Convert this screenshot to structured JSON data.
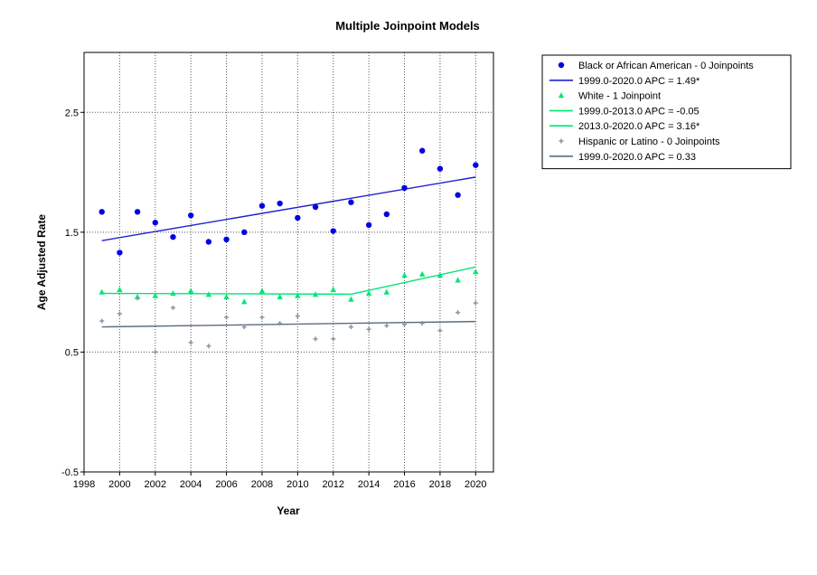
{
  "chart_data": {
    "type": "scatter",
    "title": "Multiple Joinpoint Models",
    "xlabel": "Year",
    "ylabel": "Age Adjusted Rate",
    "xlim": [
      1998,
      2021
    ],
    "ylim": [
      -0.5,
      3.0
    ],
    "x_ticks": [
      1998,
      2000,
      2002,
      2004,
      2006,
      2008,
      2010,
      2012,
      2014,
      2016,
      2018,
      2020
    ],
    "y_ticks": [
      -0.5,
      0.5,
      1.5,
      2.5
    ],
    "y_tick_labels": [
      "-0.5",
      "0.5",
      "1.5",
      "2.5"
    ],
    "grid": true,
    "grid_x": [
      2000,
      2002,
      2004,
      2006,
      2008,
      2010,
      2012,
      2014,
      2016,
      2018,
      2020
    ],
    "grid_y": [
      0.5,
      1.5,
      2.5
    ],
    "legend_position": "right",
    "years": [
      1999,
      2000,
      2001,
      2002,
      2003,
      2004,
      2005,
      2006,
      2007,
      2008,
      2009,
      2010,
      2011,
      2012,
      2013,
      2014,
      2015,
      2016,
      2017,
      2018,
      2019,
      2020
    ],
    "series": [
      {
        "name": "Black or African American - 0 Joinpoints",
        "marker": "circle",
        "color": "#0000e6",
        "values": [
          1.67,
          1.33,
          1.67,
          1.58,
          1.46,
          1.64,
          1.42,
          1.44,
          1.5,
          1.72,
          1.74,
          1.62,
          1.71,
          1.51,
          1.75,
          1.56,
          1.65,
          1.87,
          2.18,
          2.03,
          1.81,
          2.06
        ],
        "fit": [
          {
            "label": "1999.0-2020.0 APC  =  1.49*",
            "color": "#2020d0",
            "x": [
              1999,
              2020
            ],
            "y": [
              1.43,
              1.96
            ]
          }
        ]
      },
      {
        "name": "White - 1 Joinpoint",
        "marker": "triangle",
        "color": "#00e676",
        "values": [
          1.0,
          1.02,
          0.96,
          0.97,
          0.99,
          1.01,
          0.98,
          0.96,
          0.92,
          1.01,
          0.96,
          0.97,
          0.98,
          1.02,
          0.94,
          0.99,
          1.0,
          1.14,
          1.15,
          1.14,
          1.1,
          1.17
        ],
        "fit": [
          {
            "label": "1999.0-2013.0 APC  =  -0.05",
            "color": "#00e676",
            "x": [
              1999,
              2013
            ],
            "y": [
              0.99,
              0.983
            ]
          },
          {
            "label": "2013.0-2020.0 APC  =  3.16*",
            "color": "#00e676",
            "x": [
              2013,
              2020
            ],
            "y": [
              0.983,
              1.21
            ]
          }
        ]
      },
      {
        "name": "Hispanic or Latino - 0 Joinpoints",
        "marker": "plus",
        "color": "#8a93aa",
        "values": [
          0.76,
          0.82,
          0.95,
          0.5,
          0.87,
          0.58,
          0.55,
          0.79,
          0.71,
          0.79,
          0.74,
          0.8,
          0.61,
          0.61,
          0.71,
          0.69,
          0.72,
          0.73,
          0.74,
          0.68,
          0.83,
          0.91
        ],
        "fit": [
          {
            "label": "1999.0-2020.0 APC  =  0.33",
            "color": "#5a6d80",
            "x": [
              1999,
              2020
            ],
            "y": [
              0.71,
              0.755
            ]
          }
        ]
      }
    ]
  }
}
